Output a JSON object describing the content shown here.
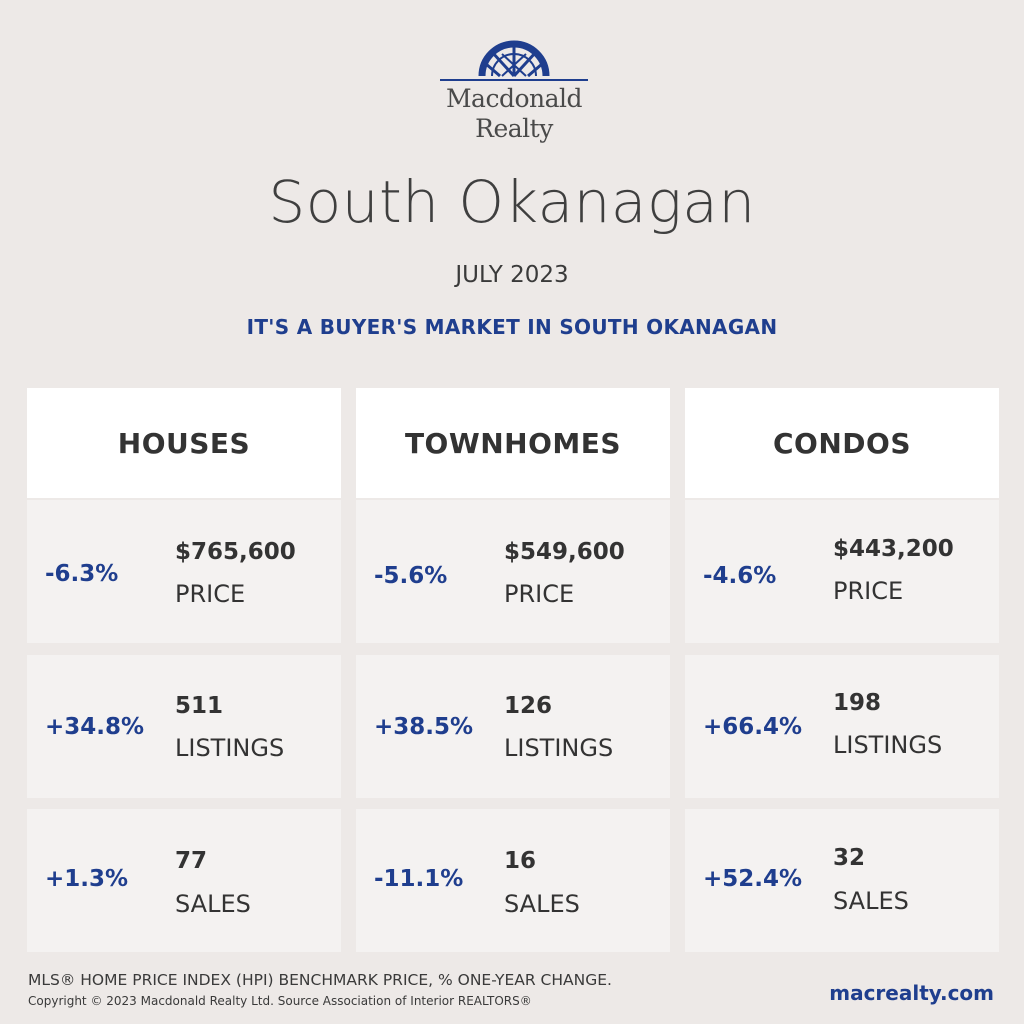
{
  "brand": {
    "line1": "Macdonald",
    "line2": "Realty",
    "logo_icon": "macdonald-sunburst-logo",
    "color": "#1f3e8e"
  },
  "region": "South Okanagan",
  "period": "JULY 2023",
  "headline": "IT'S A BUYER'S MARKET IN SOUTH OKANAGAN",
  "colors": {
    "accent": "#1f3e8e",
    "text": "#333333",
    "background": "#ede9e7"
  },
  "columns": [
    {
      "title": "HOUSES",
      "price": {
        "change": "-6.3%",
        "value": "$765,600",
        "label": "PRICE"
      },
      "listings": {
        "change": "+34.8%",
        "value": "511",
        "label": "LISTINGS"
      },
      "sales": {
        "change": "+1.3%",
        "value": "77",
        "label": "SALES"
      }
    },
    {
      "title": "TOWNHOMES",
      "price": {
        "change": "-5.6%",
        "value": "$549,600",
        "label": "PRICE"
      },
      "listings": {
        "change": "+38.5%",
        "value": "126",
        "label": "LISTINGS"
      },
      "sales": {
        "change": "-11.1%",
        "value": "16",
        "label": "SALES"
      }
    },
    {
      "title": "CONDOS",
      "price": {
        "change": "-4.6%",
        "value": "$443,200",
        "label": "PRICE"
      },
      "listings": {
        "change": "+66.4%",
        "value": "198",
        "label": "LISTINGS"
      },
      "sales": {
        "change": "+52.4%",
        "value": "32",
        "label": "SALES"
      }
    }
  ],
  "footer": {
    "note": "MLS® HOME PRICE INDEX (HPI) BENCHMARK PRICE, % ONE-YEAR CHANGE.",
    "copyright": "Copyright © 2023 Macdonald Realty Ltd. Source Association of Interior REALTORS®",
    "website": "macrealty.com"
  }
}
